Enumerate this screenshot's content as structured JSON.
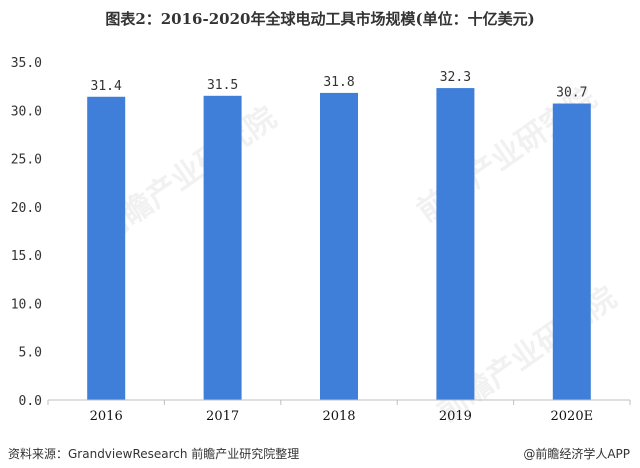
{
  "chart_data": {
    "type": "bar",
    "title": "图表2：2016-2020年全球电动工具市场规模(单位：十亿美元)",
    "categories": [
      "2016",
      "2017",
      "2018",
      "2019",
      "2020E"
    ],
    "values": [
      31.4,
      31.5,
      31.8,
      32.3,
      30.7
    ],
    "data_labels": [
      "31.4",
      "31.5",
      "31.8",
      "32.3",
      "30.7"
    ],
    "yticks": [
      "0.0",
      "5.0",
      "10.0",
      "15.0",
      "20.0",
      "25.0",
      "30.0",
      "35.0"
    ],
    "ylim": [
      0,
      35
    ],
    "grid": false,
    "bar_color": "#3f7fd9"
  },
  "footer": {
    "source": "资料来源：GrandviewResearch 前瞻产业研究院整理",
    "credit": "@前瞻经济学人APP"
  },
  "watermark": "前瞻产业研究院"
}
